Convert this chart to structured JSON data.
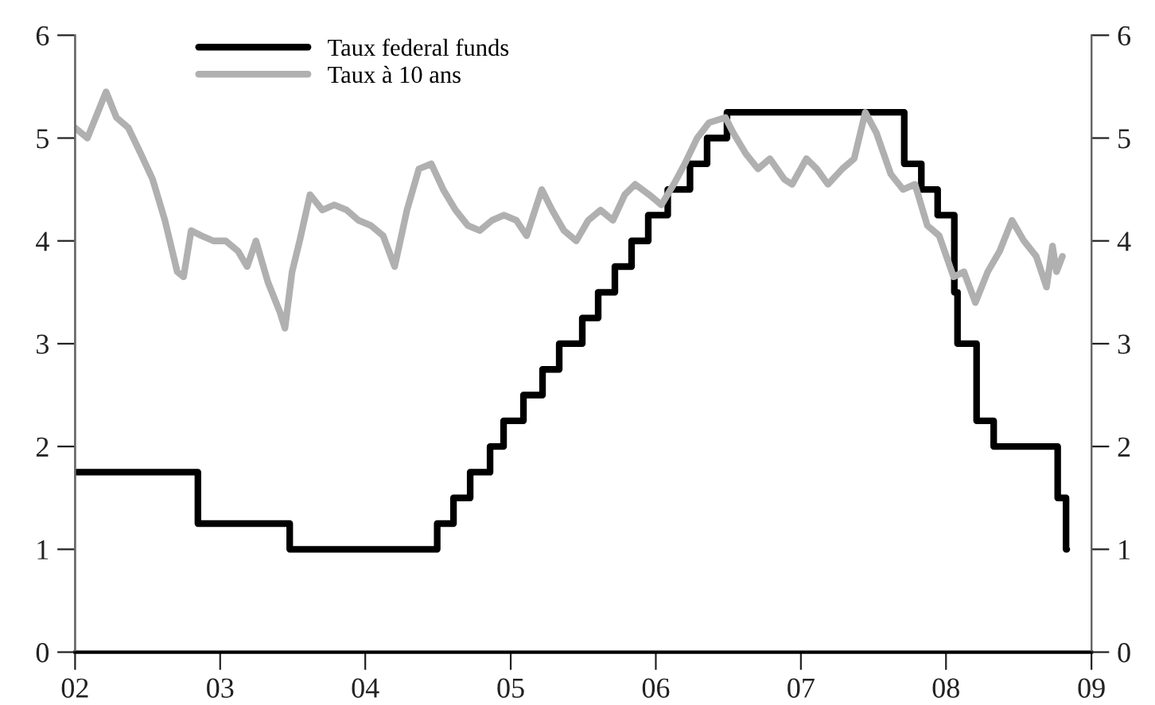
{
  "chart_data": {
    "type": "line",
    "xlim": [
      "2002-01-01",
      "2009-01-01"
    ],
    "xticks": [
      {
        "value": "2002-01-01",
        "label": "02"
      },
      {
        "value": "2003-01-01",
        "label": "03"
      },
      {
        "value": "2004-01-01",
        "label": "04"
      },
      {
        "value": "2005-01-01",
        "label": "05"
      },
      {
        "value": "2006-01-01",
        "label": "06"
      },
      {
        "value": "2007-01-01",
        "label": "07"
      },
      {
        "value": "2008-01-01",
        "label": "08"
      },
      {
        "value": "2009-01-01",
        "label": "09"
      }
    ],
    "ylim": [
      0,
      6
    ],
    "yticks": [
      0,
      1,
      2,
      3,
      4,
      5,
      6
    ],
    "y2lim": [
      0,
      6
    ],
    "y2ticks": [
      0,
      1,
      2,
      3,
      4,
      5,
      6
    ],
    "grid": false,
    "legend": "top left",
    "series": [
      {
        "name": "Taux federal funds",
        "type": "step",
        "color": "#000000",
        "x": [
          "2002-01-01",
          "2002-11-06",
          "2003-06-25",
          "2004-06-30",
          "2004-08-10",
          "2004-09-21",
          "2004-11-10",
          "2004-12-14",
          "2005-02-02",
          "2005-03-22",
          "2005-05-03",
          "2005-06-30",
          "2005-08-09",
          "2005-09-20",
          "2005-11-01",
          "2005-12-13",
          "2006-01-31",
          "2006-03-28",
          "2006-05-10",
          "2006-06-29",
          "2007-09-18",
          "2007-10-31",
          "2007-12-11",
          "2008-01-22",
          "2008-01-30",
          "2008-03-18",
          "2008-04-30",
          "2008-10-08",
          "2008-10-29",
          "2008-10-31"
        ],
        "values": [
          1.75,
          1.25,
          1.0,
          1.25,
          1.5,
          1.75,
          2.0,
          2.25,
          2.5,
          2.75,
          3.0,
          3.25,
          3.5,
          3.75,
          4.0,
          4.25,
          4.5,
          4.75,
          5.0,
          5.25,
          4.75,
          4.5,
          4.25,
          3.5,
          3.0,
          2.25,
          2.0,
          1.5,
          1.0,
          1.0
        ]
      },
      {
        "name": "Taux à 10 ans",
        "color": "#b0b0b0",
        "x": [
          "2002-01-01",
          "2002-02-01",
          "2002-03-20",
          "2002-04-15",
          "2002-05-15",
          "2002-06-15",
          "2002-07-15",
          "2002-08-15",
          "2002-09-15",
          "2002-10-01",
          "2002-10-20",
          "2002-11-15",
          "2002-12-15",
          "2003-01-15",
          "2003-02-15",
          "2003-03-10",
          "2003-04-01",
          "2003-05-01",
          "2003-06-01",
          "2003-06-13",
          "2003-07-01",
          "2003-07-20",
          "2003-08-15",
          "2003-09-15",
          "2003-10-15",
          "2003-11-15",
          "2003-12-15",
          "2004-01-15",
          "2004-02-15",
          "2004-03-15",
          "2004-04-15",
          "2004-05-15",
          "2004-06-15",
          "2004-07-15",
          "2004-08-15",
          "2004-09-15",
          "2004-10-15",
          "2004-11-15",
          "2004-12-15",
          "2005-01-15",
          "2005-02-10",
          "2005-03-20",
          "2005-04-15",
          "2005-05-15",
          "2005-06-15",
          "2005-07-15",
          "2005-08-15",
          "2005-09-15",
          "2005-10-15",
          "2005-11-10",
          "2005-12-15",
          "2006-01-15",
          "2006-02-15",
          "2006-03-15",
          "2006-04-15",
          "2006-05-15",
          "2006-06-25",
          "2006-07-15",
          "2006-08-15",
          "2006-09-15",
          "2006-10-15",
          "2006-11-20",
          "2006-12-10",
          "2007-01-15",
          "2007-02-10",
          "2007-03-10",
          "2007-04-15",
          "2007-05-15",
          "2007-06-12",
          "2007-07-10",
          "2007-08-15",
          "2007-09-15",
          "2007-10-15",
          "2007-11-15",
          "2007-12-15",
          "2008-01-20",
          "2008-02-15",
          "2008-03-15",
          "2008-04-15",
          "2008-05-15",
          "2008-06-15",
          "2008-07-15",
          "2008-08-15",
          "2008-09-10",
          "2008-09-25",
          "2008-10-05",
          "2008-10-20"
        ],
        "values": [
          5.1,
          5.0,
          5.45,
          5.2,
          5.1,
          4.85,
          4.6,
          4.2,
          3.7,
          3.65,
          4.1,
          4.05,
          4.0,
          4.0,
          3.9,
          3.75,
          4.0,
          3.6,
          3.3,
          3.15,
          3.7,
          4.0,
          4.45,
          4.3,
          4.35,
          4.3,
          4.2,
          4.15,
          4.05,
          3.75,
          4.3,
          4.7,
          4.75,
          4.5,
          4.3,
          4.15,
          4.1,
          4.2,
          4.25,
          4.2,
          4.05,
          4.5,
          4.3,
          4.1,
          4.0,
          4.2,
          4.3,
          4.2,
          4.45,
          4.55,
          4.45,
          4.35,
          4.55,
          4.75,
          5.0,
          5.15,
          5.2,
          5.05,
          4.85,
          4.7,
          4.8,
          4.6,
          4.55,
          4.8,
          4.7,
          4.55,
          4.7,
          4.8,
          5.25,
          5.05,
          4.65,
          4.5,
          4.55,
          4.15,
          4.05,
          3.65,
          3.7,
          3.4,
          3.7,
          3.9,
          4.2,
          4.0,
          3.85,
          3.55,
          3.95,
          3.7,
          3.85
        ]
      }
    ]
  }
}
